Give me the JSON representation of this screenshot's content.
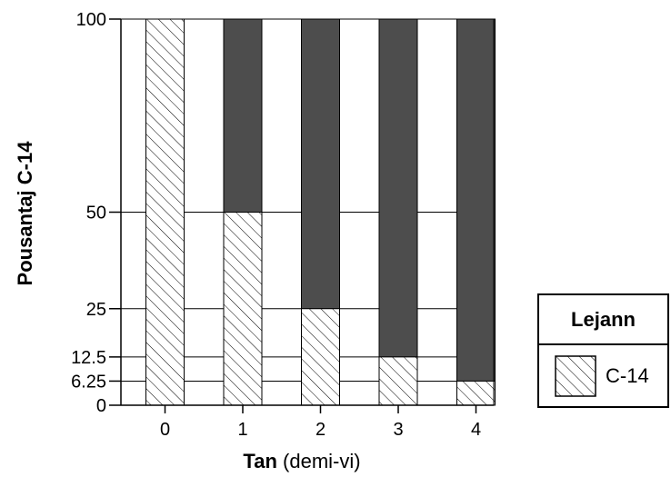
{
  "chart_data": {
    "type": "bar",
    "categories": [
      "0",
      "1",
      "2",
      "3",
      "4"
    ],
    "values": [
      100,
      50,
      25,
      12.5,
      6.25
    ],
    "ylim": [
      0,
      100
    ],
    "yticks": [
      "100",
      "50",
      "25",
      "12.5",
      "6.25",
      "0"
    ],
    "ylabel": "Pousantaj C-14",
    "xlabel_main": "Tan",
    "xlabel_unit": "(demi-vi)",
    "legend_title": "Lejann",
    "legend_entry": "C-14",
    "legend_position": "right",
    "colors": {
      "remainder": "#4d4d4d",
      "hatch": "#000000",
      "background": "#ffffff"
    },
    "grid": true
  }
}
